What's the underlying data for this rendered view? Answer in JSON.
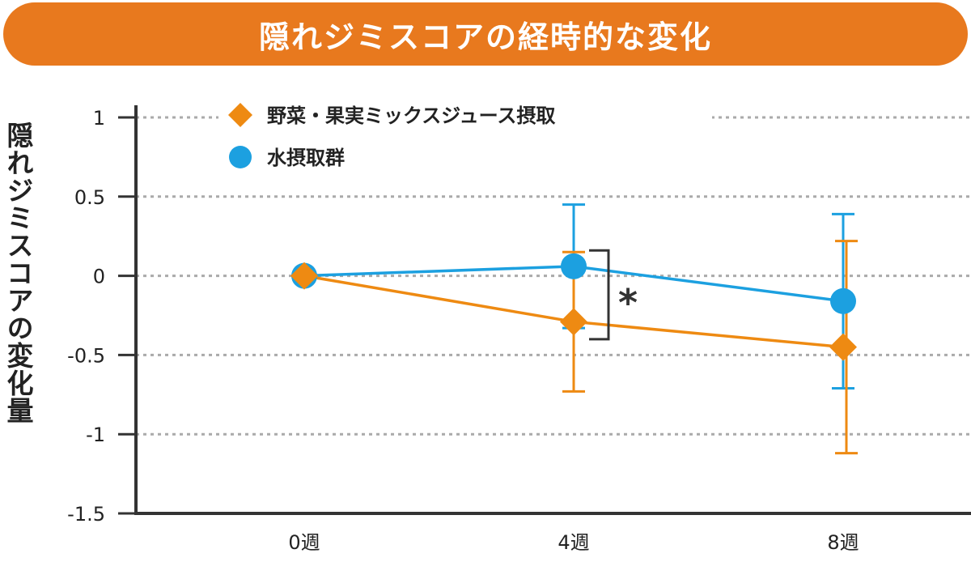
{
  "chart_data": {
    "type": "line",
    "title": "隠れジミスコアの経時的な変化",
    "ylabel": "隠れジミスコアの変化量",
    "xlabel": "",
    "categories": [
      "0週",
      "4週",
      "8週"
    ],
    "ylim": [
      -1.5,
      1
    ],
    "yticks": [
      1,
      0.5,
      0,
      -0.5,
      -1,
      -1.5
    ],
    "ytick_labels": [
      "1",
      "0.5",
      "0",
      "-0.5",
      "-1",
      "-1.5"
    ],
    "grid": true,
    "legend_position": "top-left",
    "series": [
      {
        "name": "野菜・果実ミックスジュース摂取",
        "marker": "diamond",
        "color": "#EE8A12",
        "values": [
          0,
          -0.29,
          -0.45
        ],
        "error": [
          0,
          0.44,
          0.67
        ]
      },
      {
        "name": "水摂取群",
        "marker": "circle",
        "color": "#1CA0E0",
        "values": [
          0,
          0.06,
          -0.16
        ],
        "error": [
          0,
          0.39,
          0.55
        ]
      }
    ],
    "annotations": [
      {
        "text": "*",
        "between": "4週"
      }
    ]
  }
}
